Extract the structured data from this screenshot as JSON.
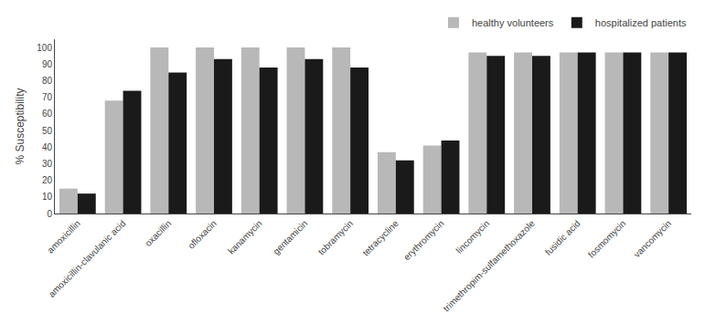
{
  "chart_data": {
    "type": "bar",
    "categories": [
      "amoxicillin",
      "amoxicillin-clavulanic acid",
      "oxacillin",
      "ofloxacin",
      "kanamycin",
      "gentamicin",
      "tobramycin",
      "tetracycline",
      "erythromycin",
      "lincomycin",
      "trimethropim-sulfamethoxazole",
      "fusidic acid",
      "fosmomycin",
      "vancomycin"
    ],
    "series": [
      {
        "name": "healthy volunteers",
        "color": "#b8b8b8",
        "values": [
          15,
          68,
          100,
          100,
          100,
          100,
          100,
          37,
          41,
          97,
          97,
          97,
          97,
          97
        ]
      },
      {
        "name": "hospitalized patients",
        "color": "#1a1a1a",
        "values": [
          12,
          74,
          85,
          93,
          88,
          93,
          88,
          32,
          44,
          95,
          95,
          97,
          97,
          97
        ]
      }
    ],
    "ylabel": "% Susceptibility",
    "ylim": [
      0,
      105
    ],
    "yticks": [
      0,
      10,
      20,
      30,
      40,
      50,
      60,
      70,
      80,
      90,
      100
    ],
    "legend": "upper right",
    "grid": false
  }
}
